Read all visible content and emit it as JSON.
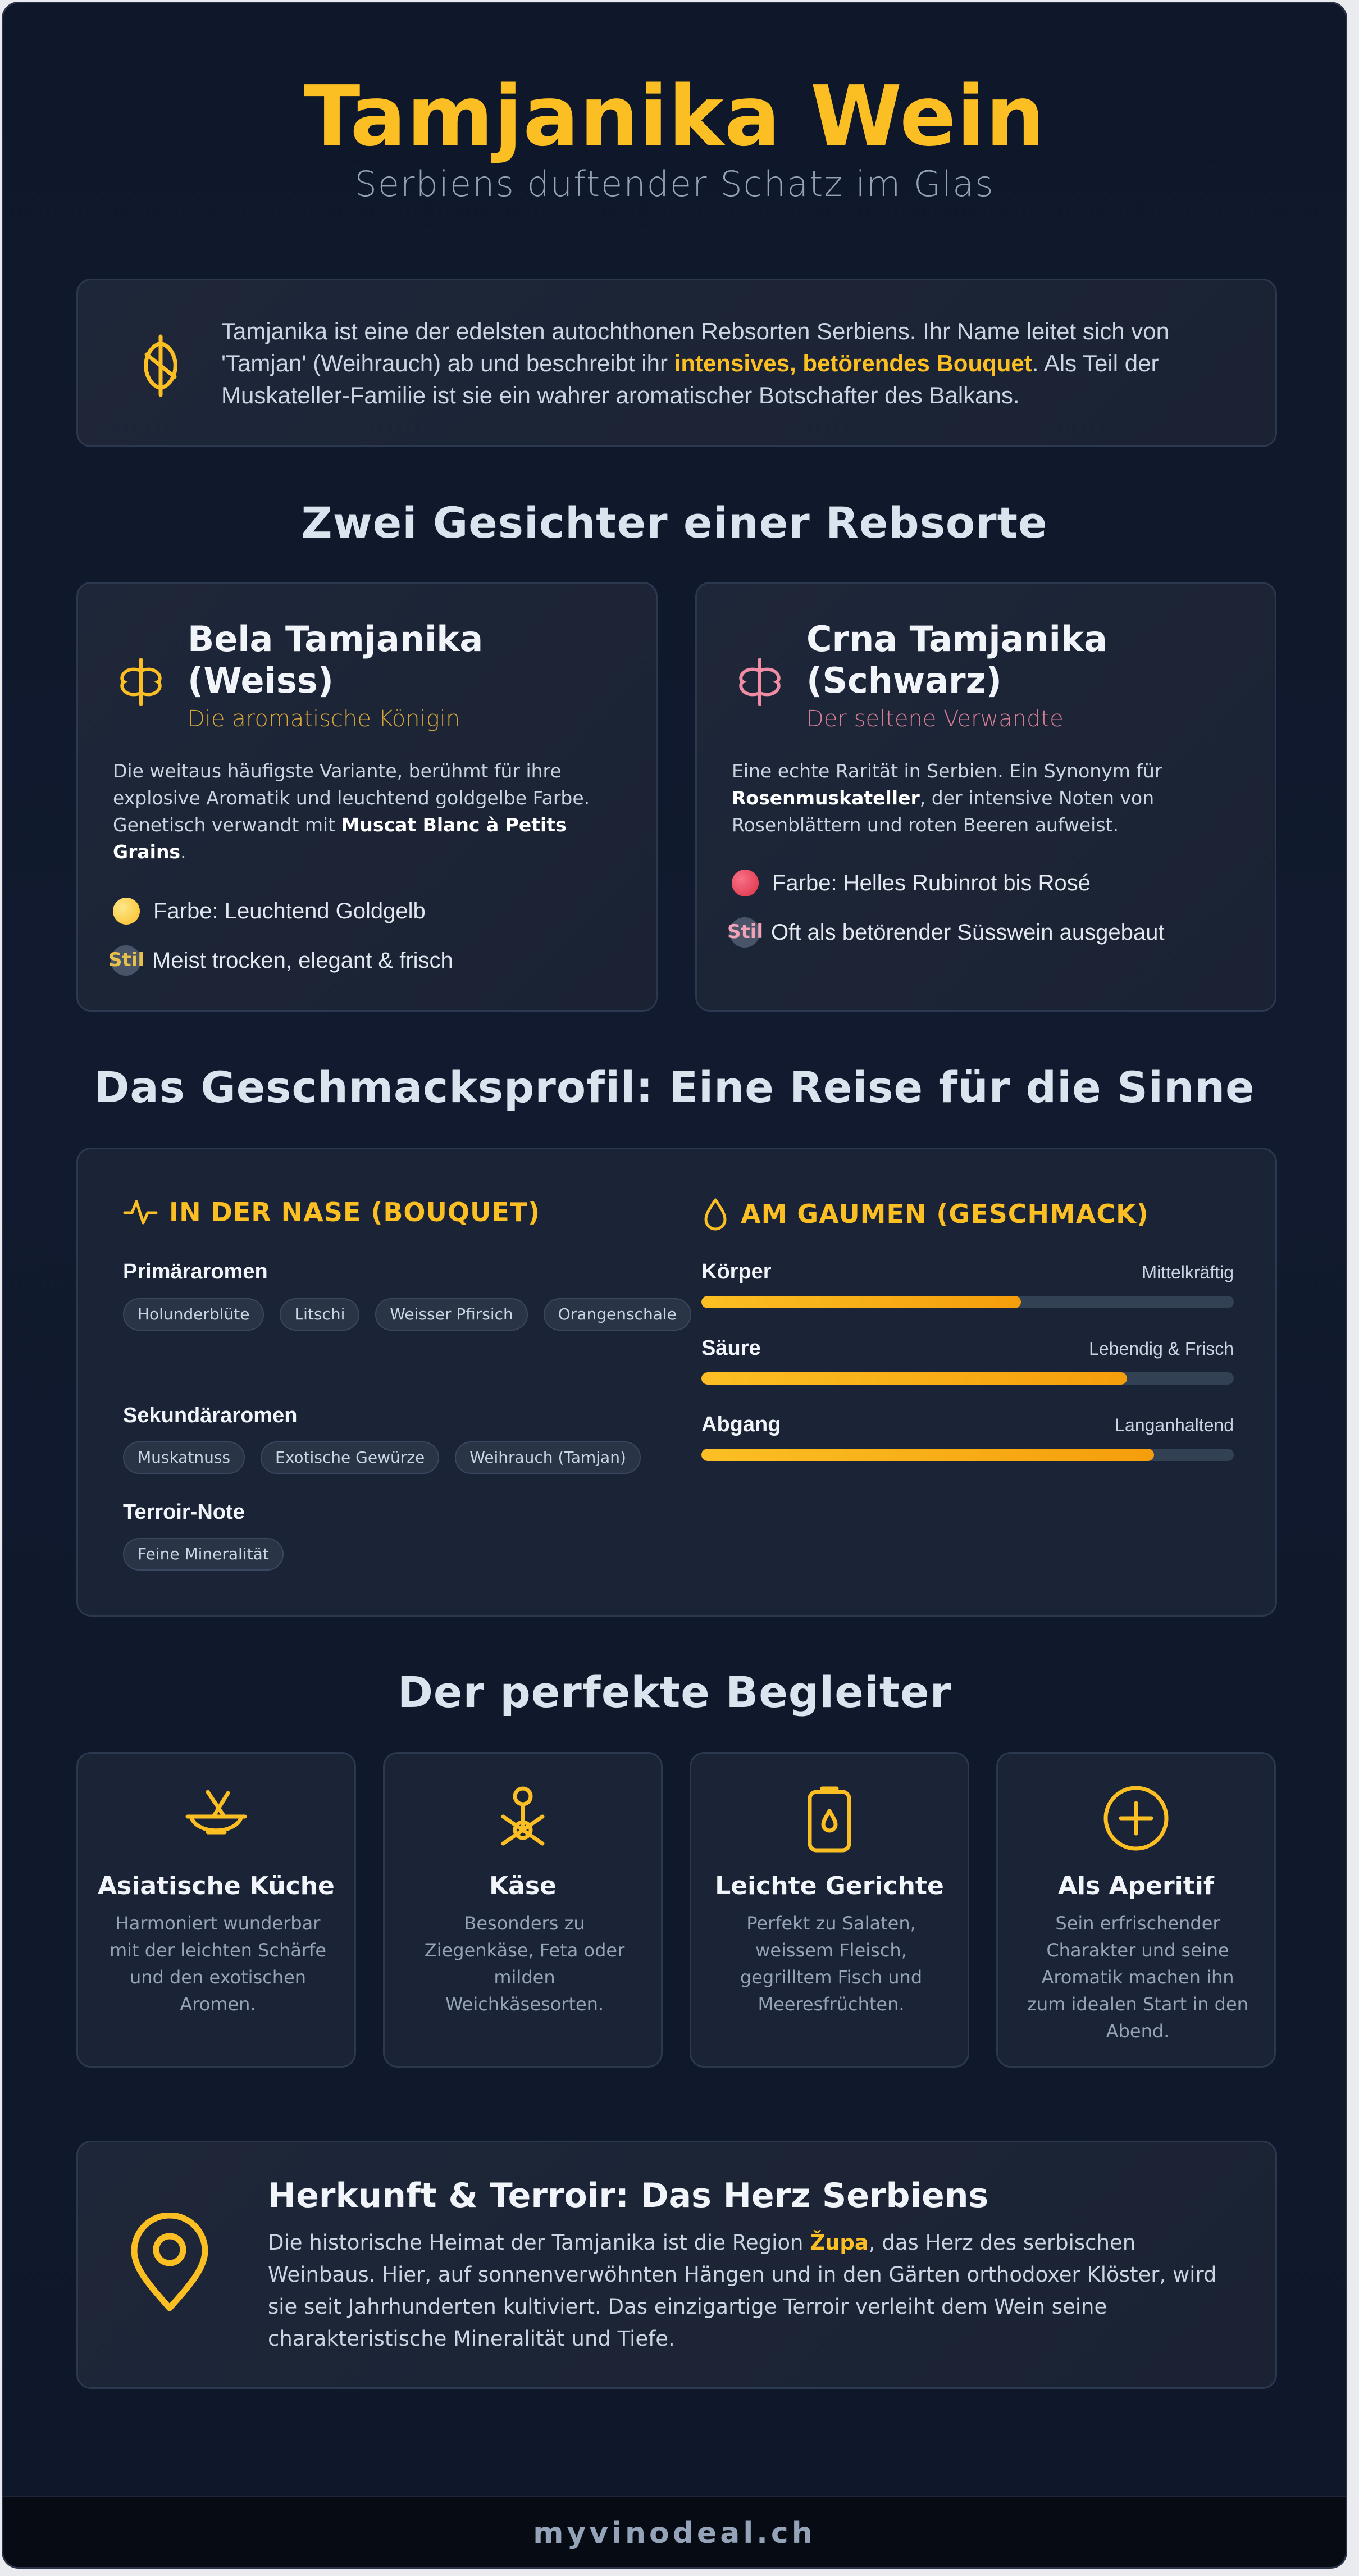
{
  "header": {
    "title": "Tamjanika Wein",
    "subtitle": "Serbiens duftender Schatz im Glas"
  },
  "intro": {
    "text_a": "Tamjanika ist eine der edelsten autochthonen Rebsorten Serbiens. Ihr Name leitet sich von 'Tamjan' (Weihrauch) ab und beschreibt ihr ",
    "highlight": "intensives, betörendes Bouquet",
    "text_b": ". Als Teil der Muskateller-Familie ist sie ein wahrer aromatischer Botschafter des Balkans."
  },
  "varieties_heading": "Zwei Gesichter einer Rebsorte",
  "varieties": [
    {
      "title": "Bela Tamjanika (Weiss)",
      "subtitle": "Die aromatische Königin",
      "accent": "#fbbf24",
      "desc_a": "Die weitaus häufigste Variante, berühmt für ihre explosive Aromatik und leuchtend goldgelbe Farbe. Genetisch verwandt mit ",
      "desc_bold": "Muscat Blanc à Petits Grains",
      "desc_b": ".",
      "color_label": "Farbe: Leuchtend Goldgelb",
      "dot_color": "#fcd34d",
      "stil_badge": "Stil",
      "style_label": "Meist trocken, elegant & frisch"
    },
    {
      "title": "Crna Tamjanika (Schwarz)",
      "subtitle": "Der seltene Verwandte",
      "accent": "#f08ca4",
      "desc_a": "Eine echte Rarität in Serbien. Ein Synonym für ",
      "desc_bold": "Rosenmuskateller",
      "desc_b": ", der intensive Noten von Rosenblättern und roten Beeren aufweist.",
      "color_label": "Farbe: Helles Rubinrot bis Rosé",
      "dot_color": "#e23b4f",
      "stil_badge": "Stil",
      "style_label": "Oft als betörender Süsswein ausgebaut"
    }
  ],
  "taste_heading": "Das Geschmacksprofil: Eine Reise für die Sinne",
  "taste": {
    "nose_title": "IN DER NASE (BOUQUET)",
    "palate_title": "AM GAUMEN (GESCHMACK)",
    "groups": [
      {
        "label": "Primäraromen",
        "chips": [
          "Holunderblüte",
          "Litschi",
          "Weisser Pfirsich",
          "Orangenschale"
        ]
      },
      {
        "label": "Sekundäraromen",
        "chips": [
          "Muskatnuss",
          "Exotische Gewürze",
          "Weihrauch (Tamjan)"
        ]
      },
      {
        "label": "Terroir-Note",
        "chips": [
          "Feine Mineralität"
        ]
      }
    ],
    "bars": [
      {
        "label": "Körper",
        "value_label": "Mittelkräftig",
        "level": 0.6
      },
      {
        "label": "Säure",
        "value_label": "Lebendig & Frisch",
        "level": 0.8
      },
      {
        "label": "Abgang",
        "value_label": "Langanhaltend",
        "level": 0.85
      }
    ]
  },
  "pairing_heading": "Der perfekte Begleiter",
  "pairings": [
    {
      "icon": "chopsticks-bowl-icon",
      "title": "Asiatische Küche",
      "desc": "Harmoniert wunderbar mit der leichten Schärfe und den exotischen Aromen."
    },
    {
      "icon": "cheese-icon",
      "title": "Käse",
      "desc": "Besonders zu Ziegenkäse, Feta oder milden Weichkäsesorten."
    },
    {
      "icon": "bottle-drop-icon",
      "title": "Leichte Gerichte",
      "desc": "Perfekt zu Salaten, weissem Fleisch, gegrilltem Fisch und Meeresfrüchten."
    },
    {
      "icon": "plus-circle-icon",
      "title": "Als Aperitif",
      "desc": "Sein erfrischender Charakter und seine Aromatik machen ihn zum idealen Start in den Abend."
    }
  ],
  "origin": {
    "title": "Herkunft & Terroir: Das Herz Serbiens",
    "text_a": "Die historische Heimat der Tamjanika ist die Region ",
    "region": "Župa",
    "text_b": ", das Herz des serbischen Weinbaus. Hier, auf sonnenverwöhnten Hängen und in den Gärten orthodoxer Klöster, wird sie seit Jahrhunderten kultiviert. Das einzigartige Terroir verleiht dem Wein seine charakteristische Mineralität und Tiefe."
  },
  "footer": "myvinodeal.ch",
  "colors": {
    "accent": "#fbbf24",
    "background": "#0f172a",
    "card": "#1b2436"
  }
}
